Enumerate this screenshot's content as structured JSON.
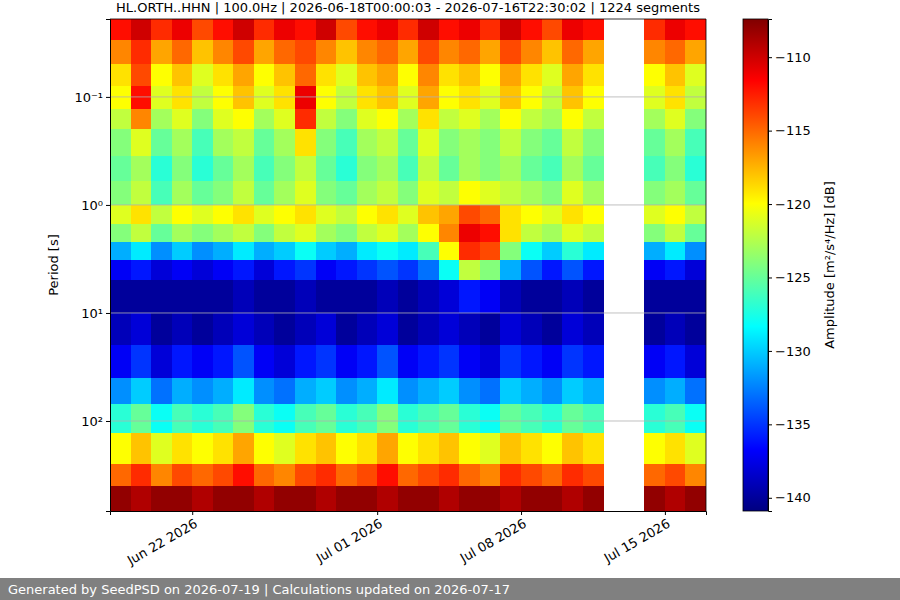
{
  "chart_data": {
    "type": "heatmap",
    "title": "HL.ORTH..HHN | 100.0Hz | 2026-06-18T00:00:03 - 2026-07-16T22:30:02 | 1224 segments",
    "footer": "Generated by SeedPSD on 2026-07-19 | Calculations updated on 2026-07-17",
    "y_label": "Period [s]",
    "x": [
      "2026-06-18",
      "2026-06-19",
      "2026-06-20",
      "2026-06-21",
      "2026-06-22",
      "2026-06-23",
      "2026-06-24",
      "2026-06-25",
      "2026-06-26",
      "2026-06-27",
      "2026-06-28",
      "2026-06-29",
      "2026-06-30",
      "2026-07-01",
      "2026-07-02",
      "2026-07-03",
      "2026-07-04",
      "2026-07-05",
      "2026-07-06",
      "2026-07-07",
      "2026-07-08",
      "2026-07-09",
      "2026-07-10",
      "2026-07-11",
      "2026-07-12",
      "2026-07-13",
      "2026-07-14",
      "2026-07-15",
      "2026-07-16"
    ],
    "y_bins": [
      0.019,
      0.03,
      0.05,
      0.08,
      0.13,
      0.2,
      0.35,
      0.6,
      1,
      1.5,
      2.2,
      3.2,
      5,
      10,
      20,
      40,
      70,
      130,
      250,
      400,
      681
    ],
    "values": [
      [
        -112,
        -110,
        -113,
        -111,
        -114,
        -112,
        -110,
        -113,
        -111,
        -112,
        -110,
        -114,
        -112,
        -111,
        -113,
        -110,
        -112,
        -111,
        -113,
        -110,
        -112,
        -114,
        -111,
        -112,
        null,
        null,
        -113,
        -111,
        -112
      ],
      [
        -116,
        -113,
        -117,
        -115,
        -118,
        -116,
        -114,
        -117,
        -115,
        -114,
        -116,
        -118,
        -116,
        -115,
        -117,
        -114,
        -116,
        -115,
        -117,
        -114,
        -116,
        -118,
        -115,
        -117,
        null,
        null,
        -116,
        -115,
        -117
      ],
      [
        -119,
        -114,
        -120,
        -118,
        -121,
        -119,
        -117,
        -120,
        -118,
        -115,
        -119,
        -121,
        -118,
        -117,
        -120,
        -116,
        -119,
        -118,
        -120,
        -117,
        -119,
        -121,
        -117,
        -119,
        null,
        null,
        -120,
        -118,
        -121
      ],
      [
        -120,
        -112,
        -121,
        -119,
        -122,
        -120,
        -118,
        -121,
        -119,
        -111,
        -120,
        -122,
        -119,
        -118,
        -121,
        -117,
        -120,
        -119,
        -121,
        -118,
        -120,
        -122,
        -118,
        -120,
        null,
        null,
        -121,
        -119,
        -122
      ],
      [
        -122,
        -116,
        -123,
        -121,
        -124,
        -121,
        -120,
        -123,
        -121,
        -113,
        -122,
        -124,
        -121,
        -120,
        -123,
        -119,
        -122,
        -121,
        -123,
        -120,
        -122,
        -123,
        -120,
        -122,
        null,
        null,
        -123,
        -121,
        -124
      ],
      [
        -124,
        -121,
        -125,
        -123,
        -126,
        -123,
        -122,
        -125,
        -123,
        -119,
        -124,
        -126,
        -123,
        -122,
        -125,
        -121,
        -124,
        -123,
        -124,
        -122,
        -124,
        -125,
        -122,
        -124,
        null,
        null,
        -125,
        -123,
        -126
      ],
      [
        -125,
        -123,
        -127,
        -124,
        -127,
        -125,
        -123,
        -126,
        -124,
        -122,
        -125,
        -127,
        -124,
        -123,
        -126,
        -122,
        -125,
        -123,
        -124,
        -123,
        -125,
        -126,
        -123,
        -125,
        null,
        null,
        -126,
        -124,
        -127
      ],
      [
        -124,
        -122,
        -126,
        -123,
        -125,
        -124,
        -122,
        -125,
        -123,
        -121,
        -124,
        -125,
        -123,
        -122,
        -124,
        -121,
        -122,
        -120,
        -121,
        -122,
        -123,
        -124,
        -121,
        -123,
        null,
        null,
        -124,
        -123,
        -125
      ],
      [
        -121,
        -119,
        -122,
        -120,
        -121,
        -120,
        -119,
        -121,
        -120,
        -119,
        -121,
        -122,
        -120,
        -119,
        -121,
        -118,
        -117,
        -114,
        -115,
        -119,
        -120,
        -121,
        -119,
        -120,
        null,
        null,
        -121,
        -120,
        -122
      ],
      [
        -124,
        -122,
        -125,
        -123,
        -124,
        -123,
        -122,
        -124,
        -122,
        -121,
        -123,
        -124,
        -122,
        -121,
        -123,
        -120,
        -116,
        -111,
        -112,
        -119,
        -122,
        -123,
        -121,
        -122,
        null,
        null,
        -124,
        -122,
        -125
      ],
      [
        -131,
        -129,
        -132,
        -130,
        -132,
        -131,
        -129,
        -131,
        -130,
        -128,
        -130,
        -131,
        -129,
        -128,
        -129,
        -126,
        -120,
        -113,
        -114,
        -124,
        -128,
        -130,
        -127,
        -129,
        null,
        null,
        -131,
        -129,
        -132
      ],
      [
        -137,
        -136,
        -138,
        -137,
        -138,
        -137,
        -136,
        -138,
        -136,
        -135,
        -137,
        -136,
        -135,
        -134,
        -135,
        -133,
        -128,
        -122,
        -124,
        -131,
        -134,
        -136,
        -134,
        -136,
        null,
        null,
        -137,
        -136,
        -138
      ],
      [
        -140,
        -140,
        -140,
        -140,
        -140,
        -140,
        -139,
        -140,
        -140,
        -139,
        -140,
        -140,
        -140,
        -139,
        -140,
        -139,
        -138,
        -136,
        -137,
        -139,
        -140,
        -140,
        -139,
        -140,
        null,
        null,
        -140,
        -140,
        -140
      ],
      [
        -139,
        -138,
        -140,
        -139,
        -140,
        -139,
        -138,
        -139,
        -140,
        -139,
        -138,
        -140,
        -139,
        -138,
        -140,
        -139,
        -138,
        -139,
        -140,
        -138,
        -139,
        -140,
        -138,
        -139,
        null,
        null,
        -140,
        -139,
        -140
      ],
      [
        -137,
        -135,
        -138,
        -136,
        -137,
        -136,
        -134,
        -137,
        -138,
        -136,
        -135,
        -137,
        -136,
        -134,
        -137,
        -136,
        -135,
        -137,
        -138,
        -135,
        -136,
        -137,
        -135,
        -136,
        null,
        null,
        -137,
        -136,
        -138
      ],
      [
        -132,
        -130,
        -133,
        -131,
        -132,
        -131,
        -129,
        -132,
        -133,
        -131,
        -130,
        -132,
        -131,
        -129,
        -132,
        -131,
        -130,
        -132,
        -133,
        -130,
        -131,
        -132,
        -130,
        -131,
        null,
        null,
        -132,
        -131,
        -133
      ],
      [
        -127,
        -125,
        -128,
        -126,
        -127,
        -126,
        -124,
        -127,
        -128,
        -126,
        -125,
        -127,
        -126,
        -124,
        -127,
        -126,
        -125,
        -127,
        -128,
        -125,
        -126,
        -127,
        -125,
        -126,
        null,
        null,
        -127,
        -126,
        -128
      ],
      [
        -120,
        -118,
        -121,
        -119,
        -120,
        -119,
        -117,
        -120,
        -121,
        -119,
        -118,
        -120,
        -119,
        -117,
        -120,
        -119,
        -118,
        -120,
        -121,
        -118,
        -119,
        -120,
        -118,
        -119,
        null,
        null,
        -120,
        -119,
        -121
      ],
      [
        -115,
        -113,
        -116,
        -114,
        -115,
        -114,
        -112,
        -115,
        -116,
        -114,
        -113,
        -115,
        -114,
        -112,
        -115,
        -114,
        -113,
        -115,
        -116,
        -113,
        -114,
        -115,
        -113,
        -114,
        null,
        null,
        -115,
        -114,
        -116
      ],
      [
        -108,
        -109,
        -108,
        -108,
        -109,
        -108,
        -108,
        -109,
        -108,
        -108,
        -109,
        -108,
        -108,
        -109,
        -108,
        -108,
        -109,
        -108,
        -108,
        -109,
        -108,
        -108,
        -109,
        -108,
        null,
        null,
        -108,
        -109,
        -108
      ]
    ],
    "xlim": [
      "2026-06-18",
      "2026-07-17"
    ],
    "xticks": [
      {
        "value": "2026-06-22",
        "label": "Jun 22 2026"
      },
      {
        "value": "2026-07-01",
        "label": "Jul 01 2026"
      },
      {
        "value": "2026-07-08",
        "label": "Jul 08 2026"
      },
      {
        "value": "2026-07-15",
        "label": "Jul 15 2026"
      }
    ],
    "ylim": [
      0.019,
      681
    ],
    "yticks": [
      {
        "value": 0.1,
        "label": "10⁻¹"
      },
      {
        "value": 1,
        "label": "10⁰"
      },
      {
        "value": 10,
        "label": "10¹"
      },
      {
        "value": 100,
        "label": "10²"
      }
    ],
    "log": "y",
    "grid": "y",
    "colorbar": {
      "label": "Amplitude [m²/s⁴/Hz] [dB]",
      "range": [
        -140.9,
        -107.4
      ],
      "ticks": [
        {
          "value": -140,
          "label": "−140"
        },
        {
          "value": -135,
          "label": "−135"
        },
        {
          "value": -130,
          "label": "−130"
        },
        {
          "value": -125,
          "label": "−125"
        },
        {
          "value": -120,
          "label": "−120"
        },
        {
          "value": -115,
          "label": "−115"
        },
        {
          "value": -110,
          "label": "−110"
        }
      ]
    }
  }
}
